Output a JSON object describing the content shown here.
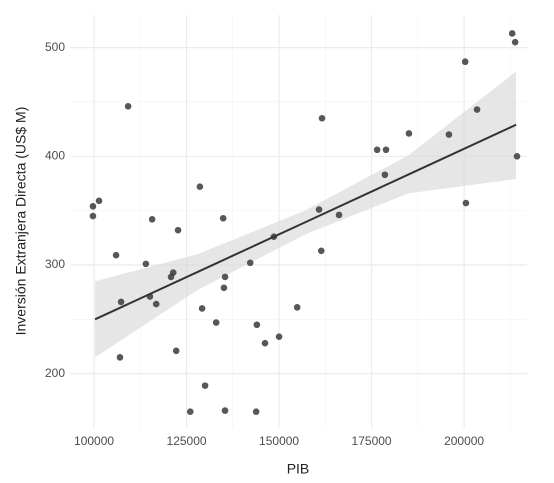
{
  "chart_data": {
    "type": "scatter",
    "x_label": "PIB",
    "y_label": "Inversión Extranjera Directa (US$ M)",
    "xlim": [
      93500,
      217000
    ],
    "ylim": [
      150,
      530
    ],
    "xticks": [
      100000,
      125000,
      150000,
      175000,
      200000
    ],
    "yticks": [
      200,
      300,
      400,
      500
    ],
    "xminor_ticks": [
      112500,
      137500,
      162500,
      187500,
      212500
    ],
    "yminor_ticks": [
      250,
      350,
      450
    ],
    "grid": true,
    "series": [
      {
        "color": "#3a3a3a",
        "x": [
          99700,
          99700,
          101350,
          105950,
          107300,
          107000,
          109200,
          114000,
          115100,
          115700,
          116800,
          120800,
          121400,
          122200,
          122700,
          126000,
          128600,
          129200,
          130000,
          133000,
          134900,
          135100,
          135400,
          135400,
          142200,
          144000,
          143800,
          146200,
          148600,
          150000,
          154900,
          160800,
          161600,
          161400,
          166200,
          176500,
          178900,
          178600,
          185100,
          195900,
          200300,
          200500,
          203500,
          213000,
          213800,
          214300
        ],
        "values": [
          354,
          345,
          359,
          309,
          266,
          215,
          446,
          301,
          271,
          342,
          264,
          289,
          293,
          221,
          332,
          165,
          372,
          260,
          189,
          247,
          343,
          279,
          289,
          166,
          302,
          245,
          165,
          228,
          326,
          234,
          261,
          351,
          435,
          313,
          346,
          406,
          406,
          383,
          421,
          420,
          487,
          357,
          443,
          513,
          505,
          400
        ]
      }
    ],
    "fit": {
      "color": "#333333",
      "band_color": "#d9d9d9",
      "x": [
        100270,
        128000,
        157000,
        185000,
        214050
      ],
      "values": [
        250,
        293.6,
        339.2,
        383.3,
        429
      ],
      "lower": [
        215,
        277,
        328,
        366,
        379
      ],
      "upper": [
        285,
        310,
        350,
        401,
        478
      ]
    }
  }
}
